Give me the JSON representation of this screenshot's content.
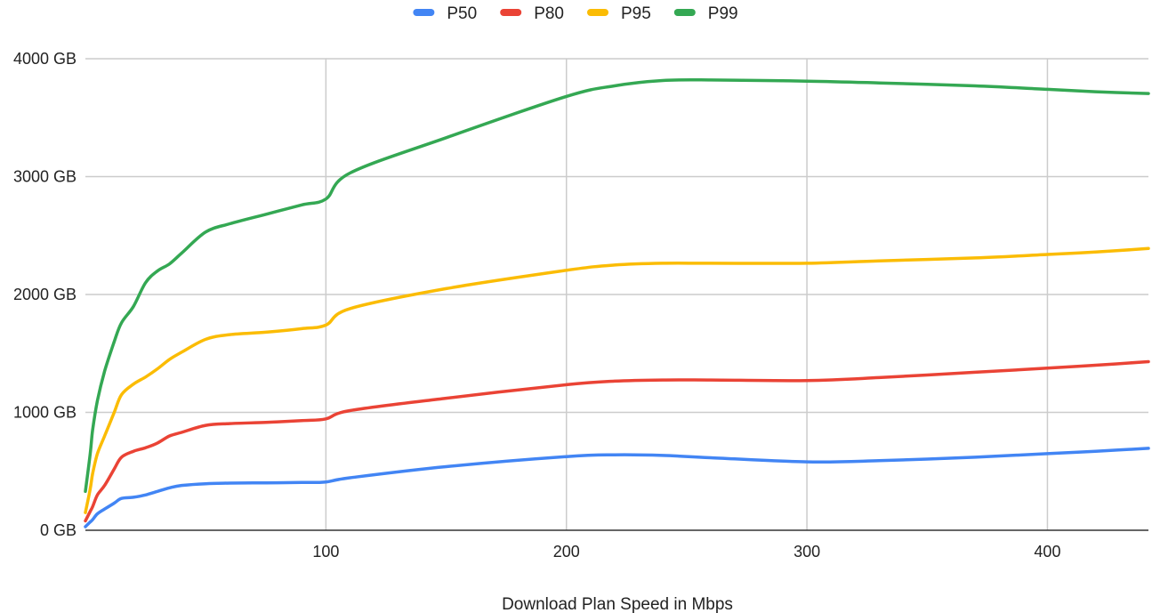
{
  "chart_data": {
    "type": "line",
    "title": "",
    "xlabel": "Download Plan Speed in Mbps",
    "ylabel": "",
    "xlim": [
      0,
      442
    ],
    "ylim": [
      0,
      4000
    ],
    "x_ticks": [
      100,
      200,
      300,
      400
    ],
    "y_ticks": [
      {
        "value": 0,
        "label": "0 GB"
      },
      {
        "value": 1000,
        "label": "1000 GB"
      },
      {
        "value": 2000,
        "label": "2000 GB"
      },
      {
        "value": 3000,
        "label": "3000 GB"
      },
      {
        "value": 4000,
        "label": "4000 GB"
      }
    ],
    "grid": true,
    "legend_position": "top-center",
    "series": [
      {
        "name": "P50",
        "color": "#4285f4",
        "points": [
          [
            0,
            30
          ],
          [
            2,
            70
          ],
          [
            3,
            90
          ],
          [
            5,
            140
          ],
          [
            8,
            180
          ],
          [
            12,
            230
          ],
          [
            15,
            270
          ],
          [
            20,
            280
          ],
          [
            25,
            300
          ],
          [
            30,
            330
          ],
          [
            35,
            360
          ],
          [
            40,
            380
          ],
          [
            50,
            395
          ],
          [
            60,
            400
          ],
          [
            75,
            402
          ],
          [
            90,
            405
          ],
          [
            100,
            410
          ],
          [
            110,
            445
          ],
          [
            150,
            540
          ],
          [
            200,
            625
          ],
          [
            220,
            640
          ],
          [
            240,
            635
          ],
          [
            260,
            615
          ],
          [
            300,
            580
          ],
          [
            330,
            590
          ],
          [
            370,
            620
          ],
          [
            400,
            650
          ],
          [
            420,
            670
          ],
          [
            442,
            695
          ]
        ]
      },
      {
        "name": "P80",
        "color": "#ea4335",
        "points": [
          [
            0,
            80
          ],
          [
            2,
            160
          ],
          [
            3,
            200
          ],
          [
            5,
            300
          ],
          [
            8,
            380
          ],
          [
            12,
            520
          ],
          [
            15,
            620
          ],
          [
            20,
            670
          ],
          [
            25,
            700
          ],
          [
            30,
            740
          ],
          [
            35,
            800
          ],
          [
            40,
            830
          ],
          [
            50,
            890
          ],
          [
            60,
            905
          ],
          [
            75,
            915
          ],
          [
            90,
            930
          ],
          [
            100,
            945
          ],
          [
            110,
            1015
          ],
          [
            150,
            1120
          ],
          [
            200,
            1235
          ],
          [
            220,
            1265
          ],
          [
            240,
            1275
          ],
          [
            260,
            1275
          ],
          [
            300,
            1270
          ],
          [
            330,
            1295
          ],
          [
            370,
            1340
          ],
          [
            400,
            1375
          ],
          [
            420,
            1400
          ],
          [
            442,
            1430
          ]
        ]
      },
      {
        "name": "P95",
        "color": "#fbbc04",
        "points": [
          [
            0,
            150
          ],
          [
            2,
            350
          ],
          [
            3,
            480
          ],
          [
            5,
            650
          ],
          [
            8,
            800
          ],
          [
            12,
            1000
          ],
          [
            15,
            1150
          ],
          [
            20,
            1240
          ],
          [
            25,
            1300
          ],
          [
            30,
            1370
          ],
          [
            35,
            1450
          ],
          [
            40,
            1510
          ],
          [
            50,
            1620
          ],
          [
            60,
            1660
          ],
          [
            75,
            1680
          ],
          [
            90,
            1710
          ],
          [
            100,
            1740
          ],
          [
            110,
            1880
          ],
          [
            150,
            2050
          ],
          [
            200,
            2205
          ],
          [
            220,
            2250
          ],
          [
            240,
            2265
          ],
          [
            260,
            2265
          ],
          [
            300,
            2265
          ],
          [
            330,
            2285
          ],
          [
            370,
            2310
          ],
          [
            400,
            2340
          ],
          [
            420,
            2360
          ],
          [
            442,
            2390
          ]
        ]
      },
      {
        "name": "P99",
        "color": "#34a853",
        "points": [
          [
            0,
            330
          ],
          [
            2,
            650
          ],
          [
            3,
            850
          ],
          [
            5,
            1100
          ],
          [
            8,
            1350
          ],
          [
            12,
            1600
          ],
          [
            15,
            1760
          ],
          [
            20,
            1900
          ],
          [
            25,
            2100
          ],
          [
            30,
            2200
          ],
          [
            35,
            2260
          ],
          [
            40,
            2350
          ],
          [
            50,
            2530
          ],
          [
            60,
            2600
          ],
          [
            75,
            2680
          ],
          [
            90,
            2760
          ],
          [
            100,
            2810
          ],
          [
            110,
            3030
          ],
          [
            150,
            3330
          ],
          [
            200,
            3680
          ],
          [
            220,
            3770
          ],
          [
            240,
            3815
          ],
          [
            260,
            3820
          ],
          [
            300,
            3810
          ],
          [
            330,
            3795
          ],
          [
            370,
            3770
          ],
          [
            400,
            3740
          ],
          [
            420,
            3720
          ],
          [
            442,
            3705
          ]
        ]
      }
    ]
  }
}
